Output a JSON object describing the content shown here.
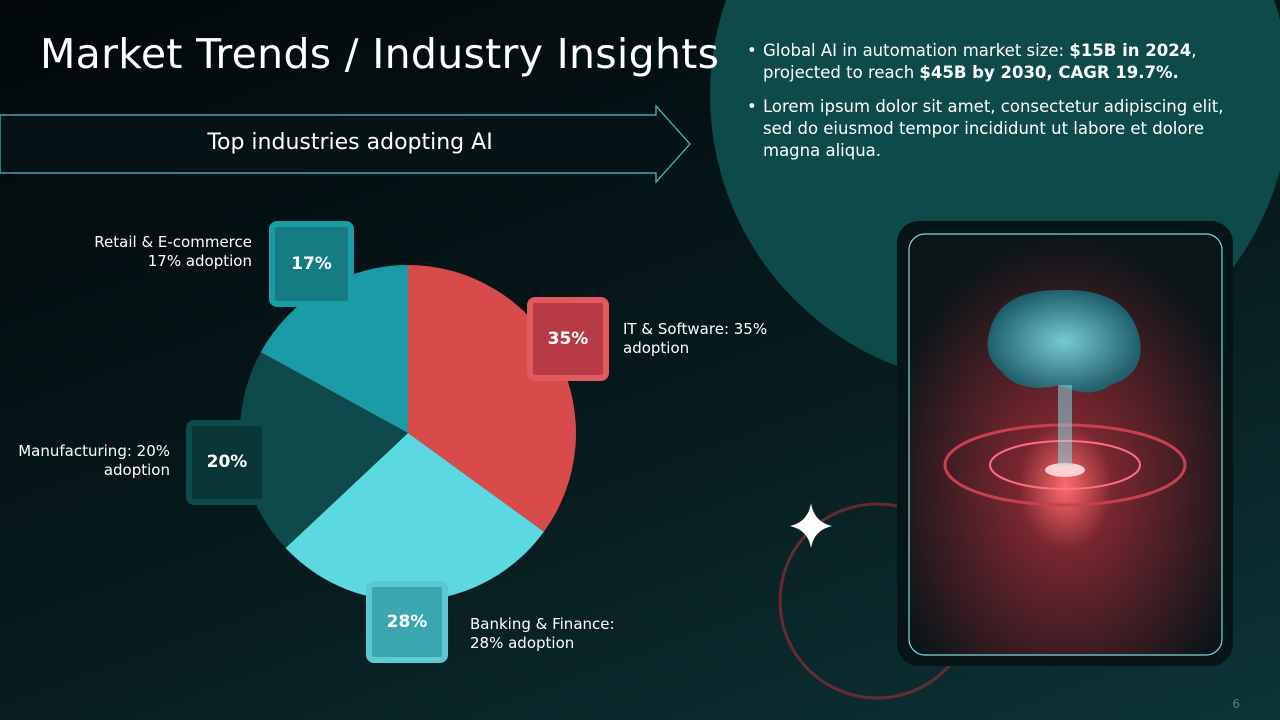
{
  "slide": {
    "title": "Market Trends / Industry Insights",
    "banner": "Top industries adopting AI",
    "bullets": [
      [
        "Global AI in automation market size: ",
        "$15B in 2024",
        ", projected to reach ",
        "$45B by 2030",
        ", CAGR 19.7%."
      ],
      [
        "Lorem ipsum dolor sit amet, consectetur adipiscing elit, sed do eiusmod tempor incididunt ut labore et dolore magna aliqua."
      ]
    ],
    "page_number": "6"
  },
  "chart_data": {
    "type": "pie",
    "categories": [
      "IT & Software: 35% adoption",
      "Banking & Finance: 28% adoption",
      "Manufacturing: 20% adoption",
      "Retail & E-commerce 17% adoption"
    ],
    "values": [
      35,
      28,
      20,
      17
    ],
    "value_labels": [
      "35%",
      "28%",
      "20%",
      "17%"
    ],
    "colors": [
      "#d94b4b",
      "#5cd9e0",
      "#0e4a4c",
      "#1a9ba5"
    ]
  }
}
